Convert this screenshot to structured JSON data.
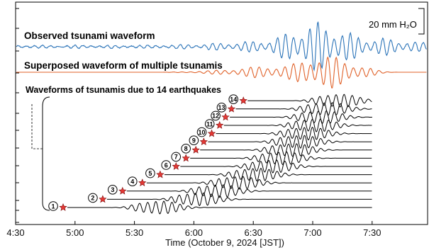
{
  "chart_data": {
    "type": "line",
    "xlabel": "Time (October 9, 2024 [JST])",
    "x_ticks": [
      "4:30",
      "5:00",
      "5:30",
      "6:00",
      "6:30",
      "7:00",
      "7:30"
    ],
    "xlim": [
      "4:30",
      "7:58"
    ],
    "scale_bar": "20 mm H₂O",
    "series": [
      {
        "name": "Observed tsunami waveform",
        "color": "#2a73b8"
      },
      {
        "name": "Superposed waveform of multiple tsunamis",
        "color": "#e0622a"
      }
    ],
    "group_label": "Waveforms of tsunamis due to 14 earthquakes",
    "earthquakes": [
      {
        "id": "1",
        "time": "4:54"
      },
      {
        "id": "2",
        "time": "5:14"
      },
      {
        "id": "3",
        "time": "5:24"
      },
      {
        "id": "4",
        "time": "5:34"
      },
      {
        "id": "5",
        "time": "5:43"
      },
      {
        "id": "6",
        "time": "5:51"
      },
      {
        "id": "7",
        "time": "5:56"
      },
      {
        "id": "8",
        "time": "6:01"
      },
      {
        "id": "9",
        "time": "6:05"
      },
      {
        "id": "10",
        "time": "6:09"
      },
      {
        "id": "11",
        "time": "6:13"
      },
      {
        "id": "12",
        "time": "6:16"
      },
      {
        "id": "13",
        "time": "6:19"
      },
      {
        "id": "14",
        "time": "6:25"
      }
    ],
    "colors": {
      "star": "#e53935",
      "black": "#000000"
    },
    "grid": false
  }
}
